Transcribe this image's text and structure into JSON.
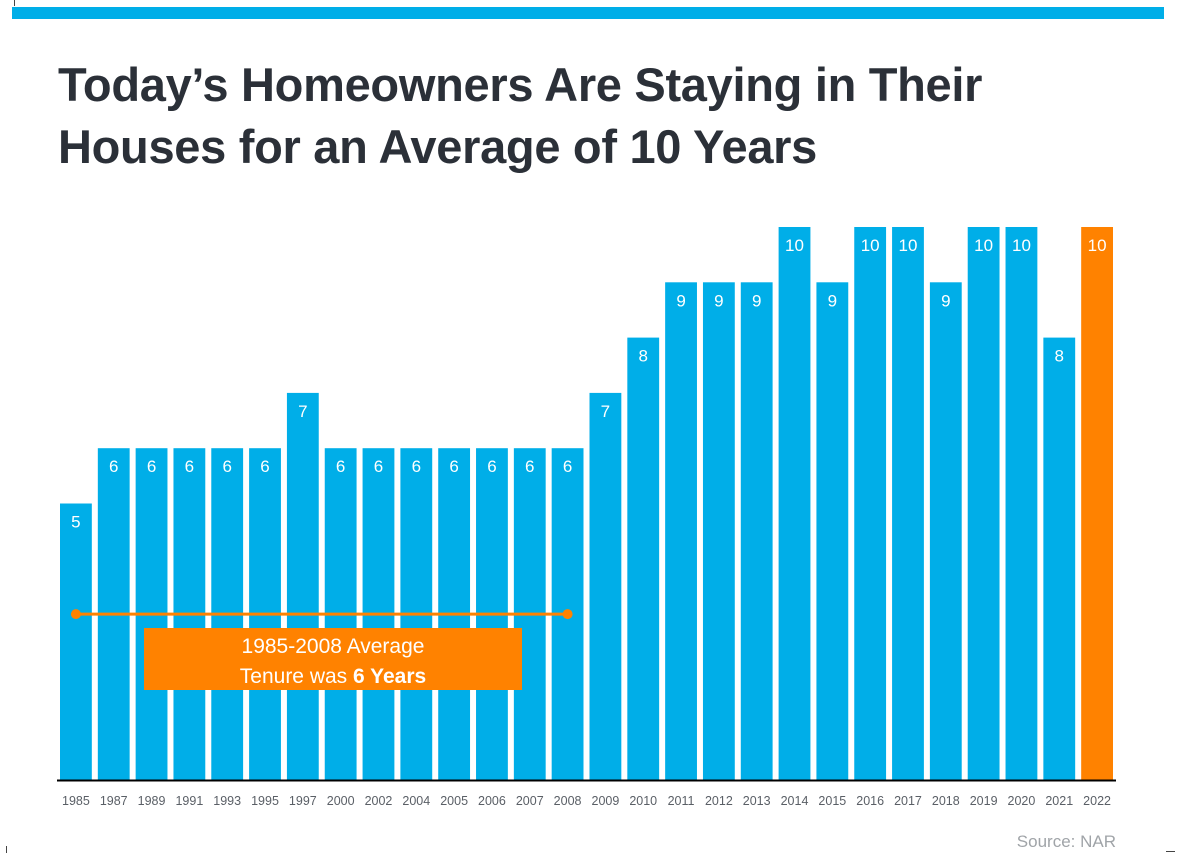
{
  "title": {
    "line1": "Today’s Homeowners Are Staying in Their",
    "line2": "Houses for an Average of 10 Years"
  },
  "source": "Source: NAR",
  "colors": {
    "accent": "#00aee8",
    "highlight": "#ff8200",
    "title": "#2b3038",
    "axis_text": "#5a5f66",
    "source": "#a0a4a8"
  },
  "chart_data": {
    "type": "bar",
    "categories": [
      "1985",
      "1987",
      "1989",
      "1991",
      "1993",
      "1995",
      "1997",
      "2000",
      "2002",
      "2004",
      "2005",
      "2006",
      "2007",
      "2008",
      "2009",
      "2010",
      "2011",
      "2012",
      "2013",
      "2014",
      "2015",
      "2016",
      "2017",
      "2018",
      "2019",
      "2020",
      "2021",
      "2022"
    ],
    "values": [
      5,
      6,
      6,
      6,
      6,
      6,
      7,
      6,
      6,
      6,
      6,
      6,
      6,
      6,
      7,
      8,
      9,
      9,
      9,
      10,
      9,
      10,
      10,
      9,
      10,
      10,
      8,
      10
    ],
    "highlight_category": "2022",
    "ylim": [
      0,
      10
    ],
    "grid": false,
    "data_labels": true,
    "annotation": {
      "line_value": 3,
      "range": [
        "1985",
        "2008"
      ],
      "text_line1": "1985-2008 Average",
      "text_line2_prefix": "Tenure was",
      "text_line2_bold": "6 Years"
    }
  }
}
